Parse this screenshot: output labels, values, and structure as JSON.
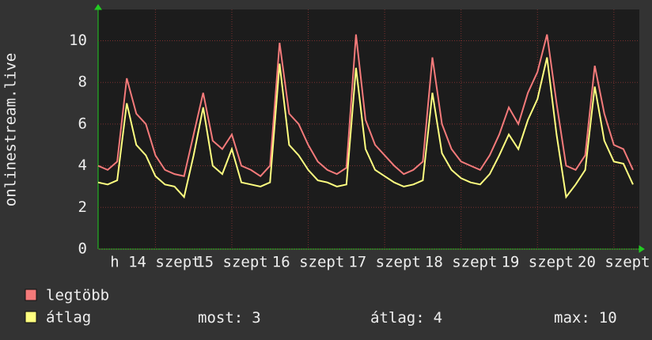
{
  "chart_data": {
    "type": "line",
    "y_label": "onlinestream.live",
    "x": [
      0,
      3,
      6,
      9,
      12,
      15,
      18,
      21,
      24,
      27,
      30,
      33,
      36,
      39,
      42,
      45,
      48,
      51,
      54,
      57,
      60,
      63,
      66,
      69,
      72,
      75,
      78,
      81,
      84,
      87,
      90,
      93,
      96,
      99,
      102,
      105,
      108,
      111,
      114,
      117,
      120,
      123,
      126,
      129,
      132,
      135,
      138,
      141,
      144,
      147,
      150,
      153,
      156,
      159,
      162,
      165,
      168
    ],
    "xlim": [
      0,
      170
    ],
    "xticks": [
      {
        "value": 18,
        "label": "h 14 szept"
      },
      {
        "value": 42,
        "label": "15 szept"
      },
      {
        "value": 66,
        "label": "16 szept"
      },
      {
        "value": 90,
        "label": "17 szept"
      },
      {
        "value": 114,
        "label": "18 szept"
      },
      {
        "value": 138,
        "label": "19 szept"
      },
      {
        "value": 162,
        "label": "20 szept"
      }
    ],
    "ylim": [
      0,
      11.5
    ],
    "yticks": [
      0,
      2,
      4,
      6,
      8,
      10
    ],
    "grid": true,
    "series": [
      {
        "name": "legtöbb",
        "color": "#f47a7a",
        "values": [
          4.0,
          3.8,
          4.2,
          8.2,
          6.5,
          6.0,
          4.5,
          3.8,
          3.6,
          3.5,
          5.5,
          7.5,
          5.2,
          4.8,
          5.5,
          4.0,
          3.8,
          3.5,
          4.0,
          9.9,
          6.5,
          6.0,
          5.0,
          4.2,
          3.8,
          3.6,
          3.9,
          10.3,
          6.2,
          5.0,
          4.5,
          4.0,
          3.6,
          3.8,
          4.2,
          9.2,
          6.0,
          4.8,
          4.2,
          4.0,
          3.8,
          4.5,
          5.5,
          6.8,
          6.0,
          7.5,
          8.5,
          10.3,
          7.0,
          4.0,
          3.8,
          4.5,
          8.8,
          6.5,
          5.0,
          4.8,
          3.8
        ]
      },
      {
        "name": "átlag",
        "color": "#ffff80",
        "values": [
          3.2,
          3.1,
          3.3,
          7.0,
          5.0,
          4.5,
          3.5,
          3.1,
          3.0,
          2.5,
          4.5,
          6.8,
          4.0,
          3.6,
          4.8,
          3.2,
          3.1,
          3.0,
          3.2,
          8.9,
          5.0,
          4.5,
          3.8,
          3.3,
          3.2,
          3.0,
          3.1,
          8.7,
          4.8,
          3.8,
          3.5,
          3.2,
          3.0,
          3.1,
          3.3,
          7.5,
          4.6,
          3.8,
          3.4,
          3.2,
          3.1,
          3.6,
          4.5,
          5.5,
          4.8,
          6.2,
          7.2,
          9.2,
          5.5,
          2.5,
          3.1,
          3.8,
          7.8,
          5.2,
          4.2,
          4.1,
          3.1
        ]
      }
    ],
    "stats": [
      {
        "label": "most:",
        "value": 3
      },
      {
        "label": "átlag:",
        "value": 4
      },
      {
        "label": "max:",
        "value": 10
      }
    ]
  }
}
